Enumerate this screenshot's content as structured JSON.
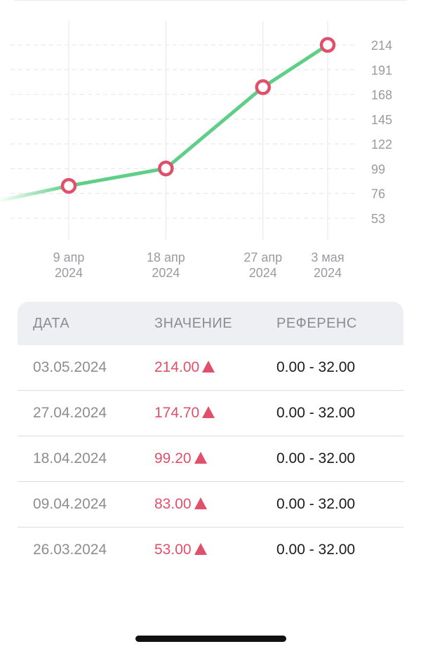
{
  "chart_data": {
    "type": "line",
    "x": [
      "2024-03-26",
      "2024-04-09",
      "2024-04-18",
      "2024-04-27",
      "2024-05-03"
    ],
    "x_tick_labels": [
      {
        "day": "9 апр",
        "year": "2024"
      },
      {
        "day": "18 апр",
        "year": "2024"
      },
      {
        "day": "27 апр",
        "year": "2024"
      },
      {
        "day": "3 мая",
        "year": "2024"
      }
    ],
    "values": [
      53.0,
      83.0,
      99.2,
      174.7,
      214.0
    ],
    "y_ticks": [
      214,
      191,
      168,
      145,
      122,
      99,
      76,
      53
    ],
    "ylim": [
      53,
      214
    ],
    "line_color": "#5fcf88",
    "marker_color": "#e0506a",
    "grid": true
  },
  "table": {
    "headers": {
      "date": "ДАТА",
      "value": "ЗНАЧЕНИЕ",
      "reference": "РЕФЕРЕНС"
    },
    "rows": [
      {
        "date": "03.05.2024",
        "value": "214.00",
        "reference": "0.00 - 32.00",
        "status_icon": "arrow-up-icon"
      },
      {
        "date": "27.04.2024",
        "value": "174.70",
        "reference": "0.00 - 32.00",
        "status_icon": "arrow-up-icon"
      },
      {
        "date": "18.04.2024",
        "value": "99.20",
        "reference": "0.00 - 32.00",
        "status_icon": "arrow-up-icon"
      },
      {
        "date": "09.04.2024",
        "value": "83.00",
        "reference": "0.00 - 32.00",
        "status_icon": "arrow-up-icon"
      },
      {
        "date": "26.03.2024",
        "value": "53.00",
        "reference": "0.00 - 32.00",
        "status_icon": "arrow-up-icon"
      }
    ]
  },
  "colors": {
    "accent_high": "#e0506a",
    "line": "#5fcf88"
  }
}
